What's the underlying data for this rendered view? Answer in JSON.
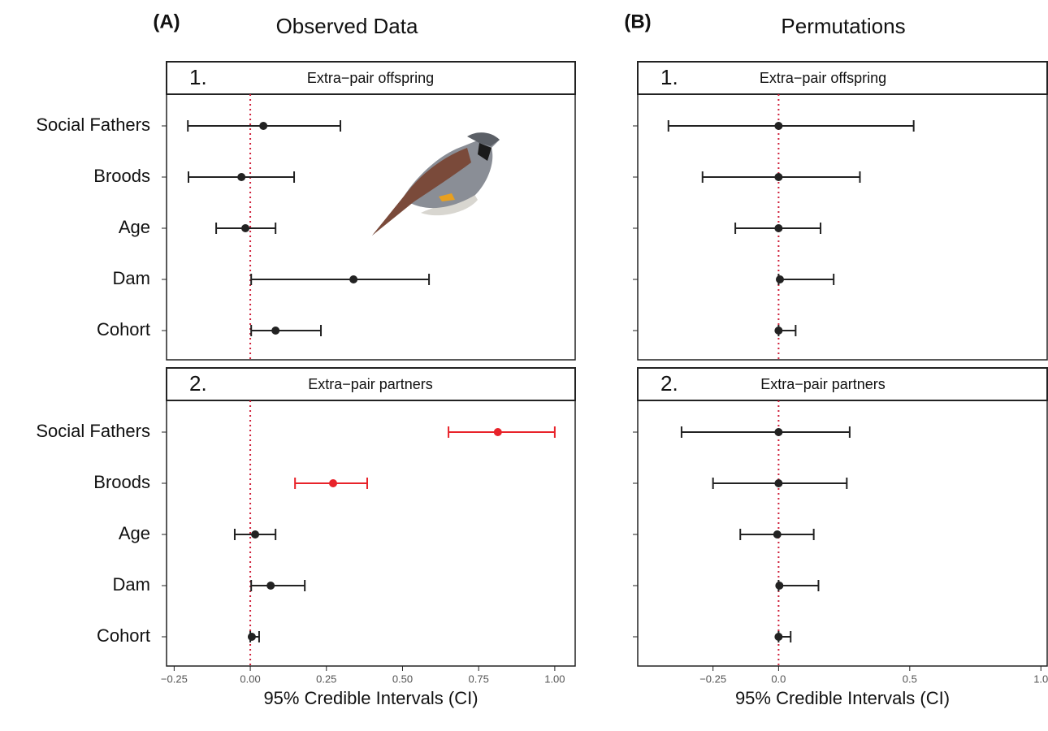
{
  "chart_data": [
    {
      "type": "errorbar",
      "panel_tag": "(A)",
      "panel_title": "Observed Data",
      "strip_number": "1.",
      "title": "Extra−pair offspring",
      "categories": [
        "Social Fathers",
        "Broods",
        "Age",
        "Dam",
        "Cohort"
      ],
      "values": [
        0.043,
        -0.029,
        -0.016,
        0.339,
        0.083
      ],
      "lower": [
        -0.205,
        -0.203,
        -0.112,
        0.003,
        0.003
      ],
      "upper": [
        0.296,
        0.144,
        0.083,
        0.587,
        0.232
      ],
      "colors": [
        "#222222",
        "#222222",
        "#222222",
        "#222222",
        "#222222"
      ],
      "xlim": [
        -0.275,
        1.067
      ],
      "reference_line": 0,
      "reference_color": "#d0203a"
    },
    {
      "type": "errorbar",
      "strip_number": "2.",
      "title": "Extra−pair partners",
      "categories": [
        "Social Fathers",
        "Broods",
        "Age",
        "Dam",
        "Cohort"
      ],
      "values": [
        0.813,
        0.272,
        0.016,
        0.067,
        0.005
      ],
      "lower": [
        0.651,
        0.147,
        -0.051,
        0.003,
        0
      ],
      "upper": [
        1.0,
        0.384,
        0.083,
        0.179,
        0.029
      ],
      "colors": [
        "#e8232a",
        "#e8232a",
        "#222222",
        "#222222",
        "#222222"
      ],
      "xlim": [
        -0.275,
        1.067
      ],
      "xticks": [
        {
          "value": -0.25,
          "label": "−0.25"
        },
        {
          "value": 0,
          "label": "0.00"
        },
        0.25,
        {
          "value": 0.5,
          "label": "0.50"
        },
        0.75,
        {
          "value": 1,
          "label": "1.00"
        }
      ],
      "xlabel": "95% Credible Intervals (CI)",
      "reference_line": 0,
      "reference_color": "#d0203a"
    },
    {
      "type": "errorbar",
      "panel_tag": "(B)",
      "panel_title": "Permutations",
      "strip_number": "1.",
      "title": "Extra−pair offspring",
      "values": [
        0,
        0,
        0,
        0.005,
        0
      ],
      "lower": [
        -0.42,
        -0.29,
        -0.165,
        0,
        0
      ],
      "upper": [
        0.515,
        0.31,
        0.16,
        0.21,
        0.065
      ],
      "colors": [
        "#222222",
        "#222222",
        "#222222",
        "#222222",
        "#222222"
      ],
      "xlim": [
        -0.537,
        1.024
      ],
      "reference_line": 0,
      "reference_color": "#d0203a"
    },
    {
      "type": "errorbar",
      "strip_number": "2.",
      "title": "Extra−pair partners",
      "values": [
        0,
        0,
        -0.005,
        0.003,
        0
      ],
      "lower": [
        -0.37,
        -0.25,
        -0.146,
        0,
        0
      ],
      "upper": [
        0.271,
        0.26,
        0.134,
        0.152,
        0.046
      ],
      "colors": [
        "#222222",
        "#222222",
        "#222222",
        "#222222",
        "#222222"
      ],
      "xlim": [
        -0.537,
        1.024
      ],
      "xticks": [
        {
          "value": -0.25,
          "label": "−0.25"
        },
        {
          "value": 0,
          "label": "0.0"
        },
        0.5,
        {
          "value": 1,
          "label": "1.0"
        }
      ],
      "xlabel": "95% Credible Intervals (CI)",
      "reference_line": 0,
      "reference_color": "#d0203a"
    }
  ]
}
